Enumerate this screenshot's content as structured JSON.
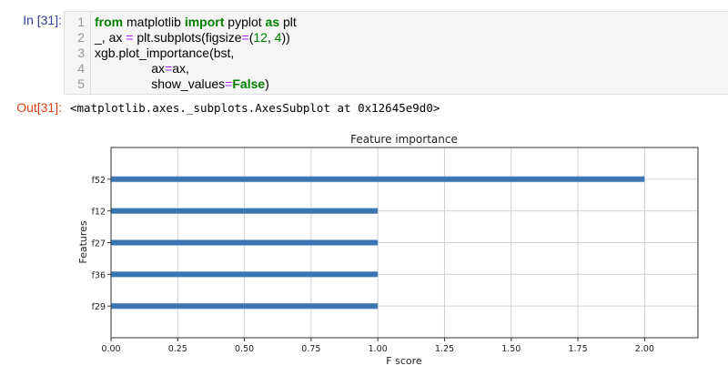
{
  "input_cell": {
    "prompt": "In [31]:",
    "line_numbers": [
      "1",
      "2",
      "3",
      "4",
      "5"
    ],
    "lines": [
      [
        {
          "t": "from",
          "c": "kw"
        },
        {
          "t": " matplotlib ",
          "c": ""
        },
        {
          "t": "import",
          "c": "kw"
        },
        {
          "t": " pyplot ",
          "c": ""
        },
        {
          "t": "as",
          "c": "kw"
        },
        {
          "t": " plt",
          "c": ""
        }
      ],
      [
        {
          "t": "_, ax ",
          "c": ""
        },
        {
          "t": "=",
          "c": "op"
        },
        {
          "t": " plt.subplots(figsize",
          "c": ""
        },
        {
          "t": "=",
          "c": "op"
        },
        {
          "t": "(",
          "c": ""
        },
        {
          "t": "12",
          "c": "num"
        },
        {
          "t": ", ",
          "c": ""
        },
        {
          "t": "4",
          "c": "num"
        },
        {
          "t": "))",
          "c": ""
        }
      ],
      [
        {
          "t": "xgb.plot_importance(bst,",
          "c": ""
        }
      ],
      [
        {
          "t": "                ax",
          "c": ""
        },
        {
          "t": "=",
          "c": "op"
        },
        {
          "t": "ax,",
          "c": ""
        }
      ],
      [
        {
          "t": "                show_values",
          "c": ""
        },
        {
          "t": "=",
          "c": "op"
        },
        {
          "t": "False",
          "c": "kw"
        },
        {
          "t": ")",
          "c": ""
        }
      ]
    ]
  },
  "output_cell": {
    "prompt": "Out[31]:",
    "text": "<matplotlib.axes._subplots.AxesSubplot at 0x12645e9d0>"
  },
  "chart_data": {
    "type": "bar",
    "orientation": "horizontal",
    "title": "Feature importance",
    "xlabel": "F score",
    "ylabel": "Features",
    "categories": [
      "f29",
      "f36",
      "f27",
      "f12",
      "f52"
    ],
    "values": [
      1,
      1,
      1,
      1,
      2
    ],
    "xlim": [
      0,
      2.2
    ],
    "xticks": [
      "0.00",
      "0.25",
      "0.50",
      "0.75",
      "1.00",
      "1.25",
      "1.50",
      "1.75",
      "2.00"
    ],
    "grid": true,
    "bar_color": "#3a75b0"
  }
}
